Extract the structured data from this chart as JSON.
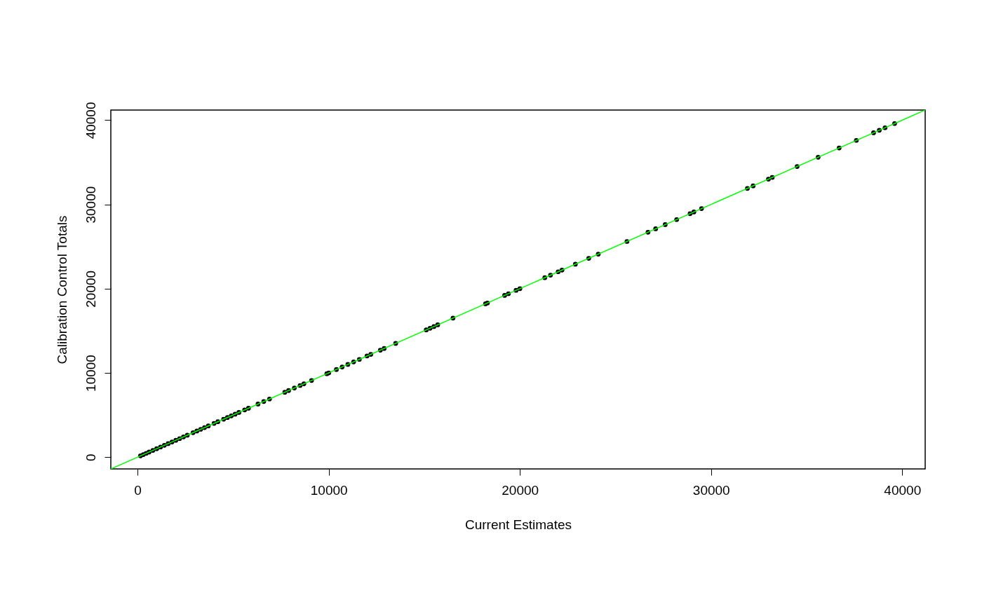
{
  "chart_data": {
    "type": "scatter",
    "xlabel": "Current Estimates",
    "ylabel": "Calibration Control Totals",
    "xlim": [
      -1400,
      41200
    ],
    "ylim": [
      -1400,
      41200
    ],
    "xticks": [
      0,
      10000,
      20000,
      30000,
      40000
    ],
    "yticks": [
      0,
      10000,
      20000,
      30000,
      40000
    ],
    "grid": false,
    "series": [
      {
        "type": "scatter",
        "color": "#000000",
        "marker": "circle",
        "x": [
          150,
          300,
          450,
          600,
          800,
          1000,
          1200,
          1400,
          1600,
          1800,
          2000,
          2200,
          2400,
          2600,
          2900,
          3100,
          3300,
          3500,
          3700,
          4000,
          4200,
          4500,
          4700,
          4900,
          5100,
          5300,
          5600,
          5800,
          6300,
          6600,
          6900,
          7700,
          7900,
          8200,
          8500,
          8700,
          9100,
          9900,
          10000,
          10400,
          10700,
          11000,
          11300,
          11600,
          12000,
          12200,
          12700,
          12900,
          13500,
          15100,
          15300,
          15500,
          15700,
          16500,
          18200,
          18300,
          19200,
          19400,
          19800,
          20000,
          21300,
          21600,
          22000,
          22200,
          22900,
          23600,
          24100,
          25600,
          26700,
          27100,
          27600,
          28200,
          28900,
          29100,
          29500,
          31900,
          32200,
          33000,
          33200,
          34500,
          35600,
          36700,
          37600,
          38500,
          38800,
          39100,
          39600
        ],
        "values": [
          150,
          300,
          450,
          600,
          800,
          1000,
          1200,
          1400,
          1600,
          1800,
          2000,
          2200,
          2400,
          2600,
          2900,
          3100,
          3300,
          3500,
          3700,
          4000,
          4200,
          4500,
          4700,
          4900,
          5100,
          5300,
          5600,
          5800,
          6300,
          6600,
          6900,
          7700,
          7900,
          8200,
          8500,
          8700,
          9100,
          9900,
          10000,
          10400,
          10700,
          11000,
          11300,
          11600,
          12000,
          12200,
          12700,
          12900,
          13500,
          15100,
          15300,
          15500,
          15700,
          16500,
          18200,
          18300,
          19200,
          19400,
          19800,
          20000,
          21300,
          21600,
          22000,
          22200,
          22900,
          23600,
          24100,
          25600,
          26700,
          27100,
          27600,
          28200,
          28900,
          29100,
          29500,
          31900,
          32200,
          33000,
          33200,
          34500,
          35600,
          36700,
          37600,
          38500,
          38800,
          39100,
          39600
        ]
      },
      {
        "type": "line",
        "color": "#00ff00",
        "x": [
          -1400,
          41200
        ],
        "values": [
          -1400,
          41200
        ]
      }
    ]
  }
}
